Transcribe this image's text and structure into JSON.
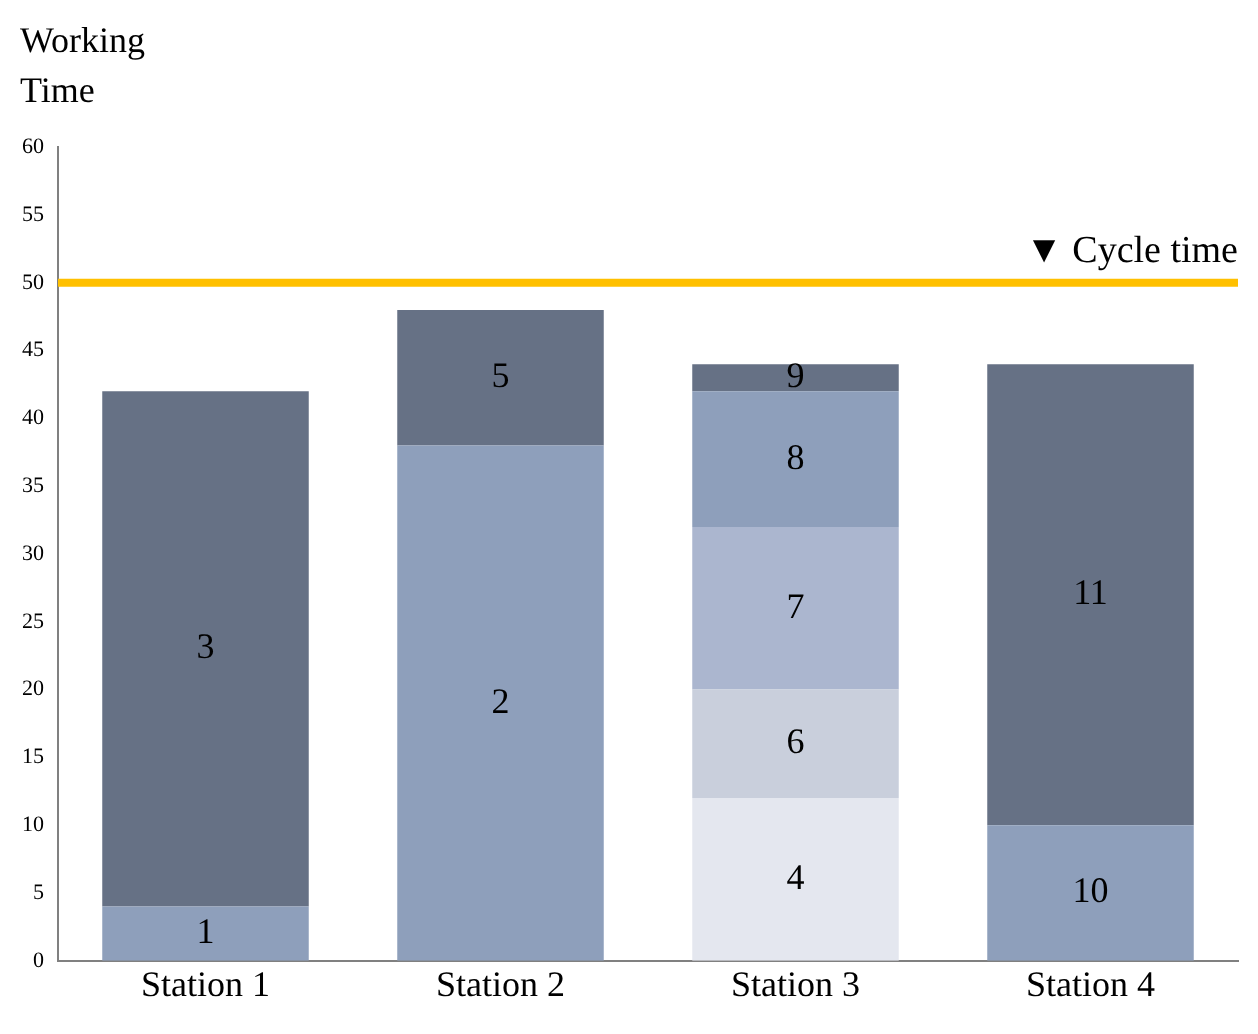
{
  "chart_data": {
    "type": "bar",
    "stacked": true,
    "ylabel": "Working Time",
    "categories": [
      "Station 1",
      "Station 2",
      "Station 3",
      "Station 4"
    ],
    "series": [
      {
        "name": "1",
        "color": "#8e9fbb",
        "values": [
          4,
          null,
          null,
          null
        ]
      },
      {
        "name": "2",
        "color": "#8e9fbb",
        "values": [
          null,
          38,
          null,
          null
        ]
      },
      {
        "name": "4",
        "color": "#e4e7ef",
        "values": [
          null,
          null,
          12,
          null
        ]
      },
      {
        "name": "10",
        "color": "#8e9fbb",
        "values": [
          null,
          null,
          null,
          10
        ]
      },
      {
        "name": "3",
        "color": "#667185",
        "values": [
          38,
          null,
          null,
          null
        ]
      },
      {
        "name": "5",
        "color": "#667185",
        "values": [
          null,
          10,
          null,
          null
        ]
      },
      {
        "name": "6",
        "color": "#c9cfdc",
        "values": [
          null,
          null,
          8,
          null
        ]
      },
      {
        "name": "11",
        "color": "#667185",
        "values": [
          null,
          null,
          null,
          34
        ]
      },
      {
        "name": "7",
        "color": "#abb6cf",
        "values": [
          null,
          null,
          12,
          null
        ]
      },
      {
        "name": "8",
        "color": "#8e9fbb",
        "values": [
          null,
          null,
          10,
          null
        ]
      },
      {
        "name": "9",
        "color": "#667185",
        "values": [
          null,
          null,
          2,
          null
        ]
      }
    ],
    "ylim": [
      0,
      60
    ],
    "yticks": [
      0,
      5,
      10,
      15,
      20,
      25,
      30,
      35,
      40,
      45,
      50,
      55,
      60
    ],
    "ref_lines": [
      {
        "axis": "y",
        "value": 50,
        "label": "▼ Cycle time",
        "color": "#ffc000"
      }
    ]
  }
}
